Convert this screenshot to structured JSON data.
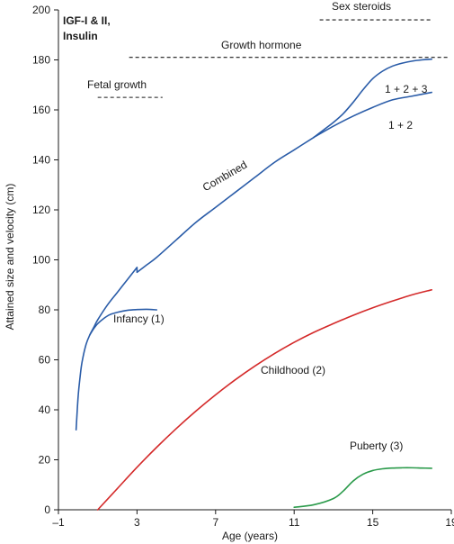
{
  "chart_data": {
    "type": "line",
    "title": "",
    "xlabel": "Age (years)",
    "ylabel": "Attained size and velocity (cm)",
    "xlim": [
      -1,
      19
    ],
    "ylim": [
      0,
      200
    ],
    "xticks": [
      -1,
      3,
      7,
      11,
      15,
      19
    ],
    "yticks": [
      0,
      20,
      40,
      60,
      80,
      100,
      120,
      140,
      160,
      180,
      200
    ],
    "xtick_labels": [
      "–1",
      "3",
      "7",
      "11",
      "15",
      "19"
    ],
    "ytick_labels": [
      "0",
      "20",
      "40",
      "60",
      "80",
      "100",
      "120",
      "140",
      "160",
      "180",
      "200"
    ],
    "grid": false,
    "colors": {
      "combined": "#2a5ca8",
      "infancy": "#2a5ca8",
      "childhood": "#d42a2a",
      "puberty": "#2a9a4a",
      "axis": "#1a1a1a",
      "dashed": "#1a1a1a"
    },
    "series": [
      {
        "key": "combined",
        "label": "Combined",
        "x": [
          -0.1,
          0.0,
          0.1,
          0.2,
          0.4,
          0.6,
          0.8,
          1.0,
          1.5,
          2.0,
          2.5,
          3.0,
          3.0,
          3.5,
          4.0,
          5.0,
          6.0,
          7.0,
          8.0,
          9.0,
          10.0,
          11.0,
          12.0
        ],
        "y": [
          32,
          45,
          53,
          59,
          66,
          70,
          73,
          76,
          82,
          87,
          92,
          97,
          95,
          98,
          101,
          108,
          115,
          121,
          127,
          133,
          139,
          144,
          149
        ]
      },
      {
        "key": "combined-1-2",
        "label": "1 + 2",
        "x": [
          12.0,
          13.0,
          14.0,
          15.0,
          16.0,
          17.0,
          18.0
        ],
        "y": [
          149,
          153.5,
          157.5,
          161,
          164,
          165.5,
          167
        ]
      },
      {
        "key": "combined-1-2-3",
        "label": "1 + 2 + 3",
        "x": [
          12.0,
          12.5,
          13.0,
          13.5,
          14.0,
          14.5,
          15.0,
          15.5,
          16.0,
          16.5,
          17.0,
          17.5,
          18.0
        ],
        "y": [
          149,
          152,
          155,
          158.5,
          163,
          168,
          172.5,
          175.5,
          177.5,
          178.7,
          179.5,
          180,
          180.3
        ]
      },
      {
        "key": "infancy",
        "label": "Infancy (1)",
        "x": [
          0.6,
          0.8,
          1.0,
          1.3,
          1.6,
          2.0,
          2.5,
          3.0,
          3.5,
          4.0
        ],
        "y": [
          70,
          72.5,
          74.5,
          76.5,
          78,
          79,
          79.8,
          80.1,
          80.2,
          80.0
        ]
      },
      {
        "key": "childhood",
        "label": "Childhood (2)",
        "x": [
          1.0,
          2.0,
          3.0,
          4.0,
          5.0,
          6.0,
          7.0,
          8.0,
          9.0,
          10.0,
          11.0,
          12.0,
          13.0,
          14.0,
          15.0,
          16.0,
          17.0,
          18.0
        ],
        "y": [
          0,
          8.5,
          17,
          25,
          32.5,
          39.5,
          46,
          52,
          57.5,
          62.5,
          67,
          71,
          74.5,
          77.8,
          80.8,
          83.5,
          86,
          88
        ]
      },
      {
        "key": "puberty",
        "label": "Puberty (3)",
        "x": [
          11.0,
          12.0,
          13.0,
          13.5,
          14.0,
          14.5,
          15.0,
          15.5,
          16.0,
          16.5,
          17.0,
          17.5,
          18.0
        ],
        "y": [
          1,
          2,
          4.5,
          7.5,
          11.5,
          14.2,
          15.7,
          16.4,
          16.7,
          16.8,
          16.8,
          16.7,
          16.6
        ]
      }
    ],
    "reference_lines": [
      {
        "key": "fetal-growth",
        "label": "Fetal growth",
        "x_start": 1.0,
        "x_end": 4.3,
        "y": 165
      },
      {
        "key": "growth-hormone",
        "label": "Growth hormone",
        "x_start": 2.6,
        "x_end": 18.8,
        "y": 181
      },
      {
        "key": "sex-steroids",
        "label": "Sex steroids",
        "x_start": 12.3,
        "x_end": 18.0,
        "y": 196
      }
    ],
    "annotations": {
      "igf_line1": "IGF-I & II,",
      "igf_line2": "Insulin",
      "combined_label": "Combined",
      "infancy_label": "Infancy (1)",
      "childhood_label": "Childhood (2)",
      "puberty_label": "Puberty (3)",
      "label_1_2_3": "1 + 2 + 3",
      "label_1_2": "1 + 2",
      "fetal_growth_label": "Fetal growth",
      "growth_hormone_label": "Growth hormone",
      "sex_steroids_label": "Sex steroids"
    }
  }
}
